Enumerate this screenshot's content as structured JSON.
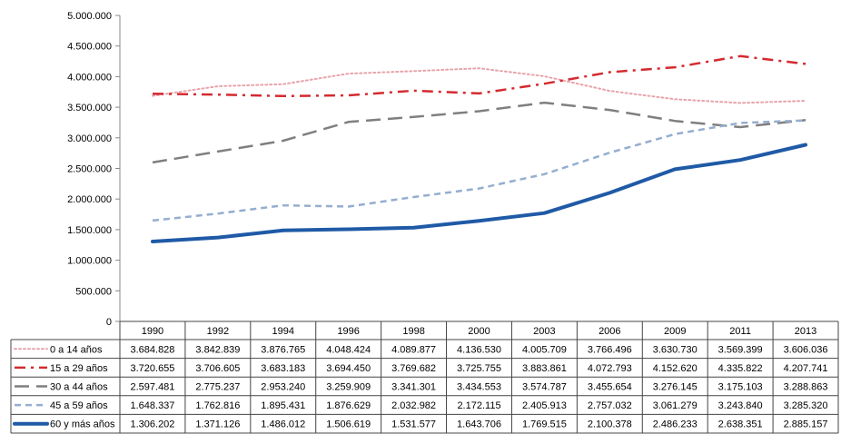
{
  "chart_data": {
    "type": "line",
    "title": "",
    "xlabel": "",
    "ylabel": "",
    "ylim": [
      0,
      5000000
    ],
    "y_ticks": [
      "0",
      "500.000",
      "1.000.000",
      "1.500.000",
      "2.000.000",
      "2.500.000",
      "3.000.000",
      "3.500.000",
      "4.000.000",
      "4.500.000",
      "5.000.000"
    ],
    "y_tick_values": [
      0,
      500000,
      1000000,
      1500000,
      2000000,
      2500000,
      3000000,
      3500000,
      4000000,
      4500000,
      5000000
    ],
    "categories": [
      "1990",
      "1992",
      "1994",
      "1996",
      "1998",
      "2000",
      "2003",
      "2006",
      "2009",
      "2011",
      "2013"
    ],
    "grid": false,
    "legend": "data-table-left",
    "series": [
      {
        "name": "0 a 14 años",
        "color": "#e8a3ab",
        "style": "dotted",
        "values": [
          3684828,
          3842839,
          3876765,
          4048424,
          4089877,
          4136530,
          4005709,
          3766496,
          3630730,
          3569399,
          3606036
        ],
        "labels": [
          "3.684.828",
          "3.842.839",
          "3.876.765",
          "4.048.424",
          "4.089.877",
          "4.136.530",
          "4.005.709",
          "3.766.496",
          "3.630.730",
          "3.569.399",
          "3.606.036"
        ]
      },
      {
        "name": "15 a 29 años",
        "color": "#d42a2f",
        "style": "dashdot",
        "values": [
          3720655,
          3706605,
          3683183,
          3694450,
          3769682,
          3725755,
          3883861,
          4072793,
          4152620,
          4335822,
          4207741
        ],
        "labels": [
          "3.720.655",
          "3.706.605",
          "3.683.183",
          "3.694.450",
          "3.769.682",
          "3.725.755",
          "3.883.861",
          "4.072.793",
          "4.152.620",
          "4.335.822",
          "4.207.741"
        ]
      },
      {
        "name": "30 a 44 años",
        "color": "#7f7f7f",
        "style": "longdash",
        "values": [
          2597481,
          2775237,
          2953240,
          3259909,
          3341301,
          3434553,
          3574787,
          3455654,
          3276145,
          3175103,
          3288863
        ],
        "labels": [
          "2.597.481",
          "2.775.237",
          "2.953.240",
          "3.259.909",
          "3.341.301",
          "3.434.553",
          "3.574.787",
          "3.455.654",
          "3.276.145",
          "3.175.103",
          "3.288.863"
        ]
      },
      {
        "name": "45 a 59 años",
        "color": "#95aecf",
        "style": "dashed",
        "values": [
          1648337,
          1762816,
          1895431,
          1876629,
          2032982,
          2172115,
          2405913,
          2757032,
          3061279,
          3243840,
          3285320
        ],
        "labels": [
          "1.648.337",
          "1.762.816",
          "1.895.431",
          "1.876.629",
          "2.032.982",
          "2.172.115",
          "2.405.913",
          "2.757.032",
          "3.061.279",
          "3.243.840",
          "3.285.320"
        ]
      },
      {
        "name": "60 y más años",
        "color": "#1f5aa6",
        "style": "solid-thick",
        "values": [
          1306202,
          1371126,
          1486012,
          1506619,
          1531577,
          1643706,
          1769515,
          2100378,
          2486233,
          2638351,
          2885157
        ],
        "labels": [
          "1.306.202",
          "1.371.126",
          "1.486.012",
          "1.506.619",
          "1.531.577",
          "1.643.706",
          "1.769.515",
          "2.100.378",
          "2.486.233",
          "2.638.351",
          "2.885.157"
        ]
      }
    ]
  }
}
